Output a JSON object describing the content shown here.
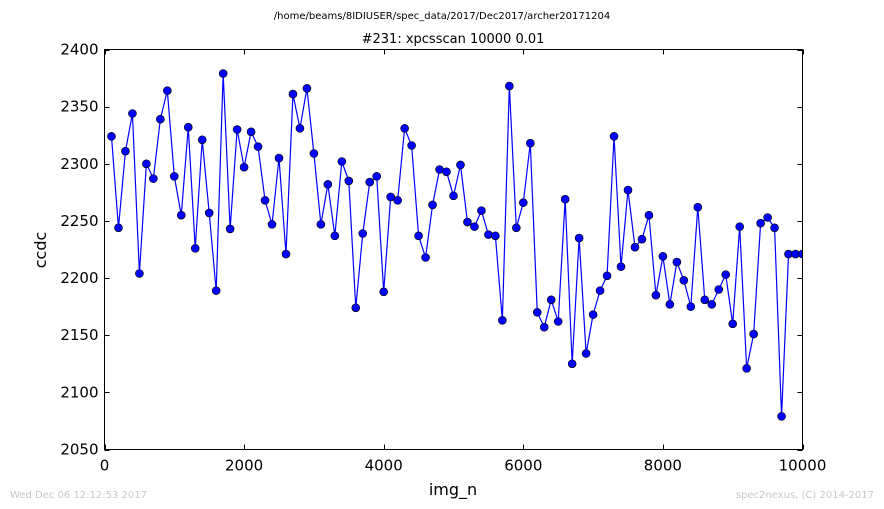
{
  "header": {
    "path": "/home/beams/8IDIUSER/spec_data/2017/Dec2017/archer20171204"
  },
  "footer": {
    "timestamp": "Wed Dec 06 12:12:53 2017",
    "credit": "spec2nexus, (C) 2014-2017"
  },
  "colors": {
    "series": "#0000ff",
    "marker_fill": "#0000ff",
    "marker_edge": "#000000"
  },
  "chart_data": {
    "type": "line",
    "title": "#231: xpcsscan 10000 0.01",
    "xlabel": "img_n",
    "ylabel": "ccdc",
    "xlim": [
      0,
      10000
    ],
    "ylim": [
      2050,
      2400
    ],
    "xticks": [
      0,
      2000,
      4000,
      6000,
      8000,
      10000
    ],
    "yticks": [
      2050,
      2100,
      2150,
      2200,
      2250,
      2300,
      2350,
      2400
    ],
    "grid": false,
    "legend": "none",
    "markers": "circle",
    "series": [
      {
        "x": [
          100,
          200,
          300,
          400,
          500,
          600,
          700,
          800,
          900,
          1000,
          1100,
          1200,
          1300,
          1400,
          1500,
          1600,
          1700,
          1800,
          1900,
          2000,
          2100,
          2200,
          2300,
          2400,
          2500,
          2600,
          2700,
          2800,
          2900,
          3000,
          3100,
          3200,
          3300,
          3400,
          3500,
          3600,
          3700,
          3800,
          3900,
          4000,
          4100,
          4200,
          4300,
          4400,
          4500,
          4600,
          4700,
          4800,
          4900,
          5000,
          5100,
          5200,
          5300,
          5400,
          5500,
          5600,
          5700,
          5800,
          5900,
          6000,
          6100,
          6200,
          6300,
          6400,
          6500,
          6600,
          6700,
          6800,
          6900,
          7000,
          7100,
          7200,
          7300,
          7400,
          7500,
          7600,
          7700,
          7800,
          7900,
          8000,
          8100,
          8200,
          8300,
          8400,
          8500,
          8600,
          8700,
          8800,
          8900,
          9000,
          9100,
          9200,
          9300,
          9400,
          9500,
          9600,
          9700,
          9800,
          9900,
          10000
        ],
        "y": [
          2324,
          2244,
          2311,
          2344,
          2204,
          2300,
          2287,
          2339,
          2364,
          2289,
          2255,
          2332,
          2226,
          2321,
          2257,
          2189,
          2379,
          2243,
          2330,
          2297,
          2328,
          2315,
          2268,
          2247,
          2305,
          2221,
          2361,
          2331,
          2366,
          2309,
          2247,
          2282,
          2237,
          2302,
          2285,
          2174,
          2239,
          2284,
          2289,
          2188,
          2271,
          2268,
          2331,
          2316,
          2237,
          2218,
          2264,
          2295,
          2293,
          2272,
          2299,
          2249,
          2245,
          2259,
          2238,
          2237,
          2163,
          2368,
          2244,
          2266,
          2318,
          2170,
          2157,
          2181,
          2162,
          2269,
          2125,
          2235,
          2134,
          2168,
          2189,
          2202,
          2324,
          2210,
          2277,
          2227,
          2234,
          2255,
          2185,
          2219,
          2177,
          2214,
          2198,
          2175,
          2262,
          2181,
          2177,
          2190,
          2203,
          2160,
          2245,
          2121,
          2151,
          2248,
          2253,
          2244,
          2079,
          2221,
          2221,
          2221
        ]
      }
    ]
  }
}
